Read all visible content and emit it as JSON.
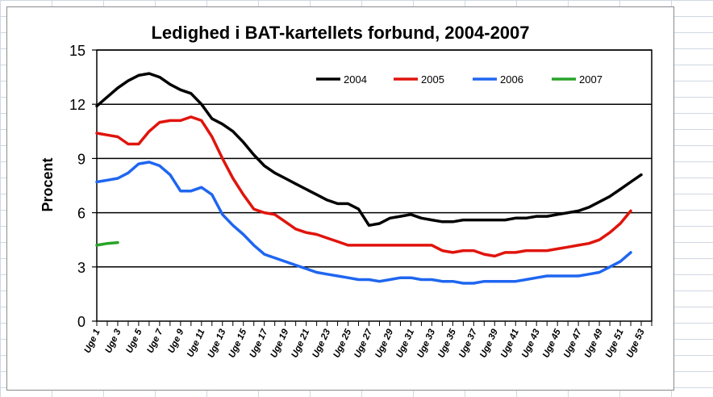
{
  "chart_data": {
    "type": "line",
    "title": "Ledighed i BAT-kartellets forbund, 2004-2007",
    "xlabel": "",
    "ylabel": "Procent",
    "ylim": [
      0,
      15
    ],
    "yticks": [
      0,
      3,
      6,
      9,
      12,
      15
    ],
    "xlim": [
      1,
      54
    ],
    "grid": "horizontal",
    "legend_position": "top-right",
    "x_tick_labels": [
      "Uge 1",
      "Uge 3",
      "Uge 5",
      "Uge 7",
      "Uge 9",
      "Uge 11",
      "Uge 13",
      "Uge 15",
      "Uge 17",
      "Uge 19",
      "Uge 21",
      "Uge 23",
      "Uge 25",
      "Uge 27",
      "Uge 29",
      "Uge 31",
      "Uge 33",
      "Uge 35",
      "Uge 37",
      "Uge 39",
      "Uge 41",
      "Uge 43",
      "Uge 45",
      "Uge 47",
      "Uge 49",
      "Uge 51",
      "Uge 53"
    ],
    "series": [
      {
        "name": "2004",
        "color": "#000000",
        "x": [
          1,
          2,
          3,
          4,
          5,
          6,
          7,
          8,
          9,
          10,
          11,
          12,
          13,
          14,
          15,
          16,
          17,
          18,
          19,
          20,
          21,
          22,
          23,
          24,
          25,
          26,
          27,
          28,
          29,
          30,
          31,
          32,
          33,
          34,
          35,
          36,
          37,
          38,
          39,
          40,
          41,
          42,
          43,
          44,
          45,
          46,
          47,
          48,
          49,
          50,
          51,
          52,
          53
        ],
        "values": [
          11.9,
          12.4,
          12.9,
          13.3,
          13.6,
          13.7,
          13.5,
          13.1,
          12.8,
          12.6,
          12.0,
          11.2,
          10.9,
          10.5,
          9.9,
          9.2,
          8.6,
          8.2,
          7.9,
          7.6,
          7.3,
          7.0,
          6.7,
          6.5,
          6.5,
          6.2,
          5.3,
          5.4,
          5.7,
          5.8,
          5.9,
          5.7,
          5.6,
          5.5,
          5.5,
          5.6,
          5.6,
          5.6,
          5.6,
          5.6,
          5.7,
          5.7,
          5.8,
          5.8,
          5.9,
          6.0,
          6.1,
          6.3,
          6.6,
          6.9,
          7.3,
          7.7,
          8.1
        ]
      },
      {
        "name": "2005",
        "color": "#e0140c",
        "x": [
          1,
          2,
          3,
          4,
          5,
          6,
          7,
          8,
          9,
          10,
          11,
          12,
          13,
          14,
          15,
          16,
          17,
          18,
          19,
          20,
          21,
          22,
          23,
          24,
          25,
          26,
          27,
          28,
          29,
          30,
          31,
          32,
          33,
          34,
          35,
          36,
          37,
          38,
          39,
          40,
          41,
          42,
          43,
          44,
          45,
          46,
          47,
          48,
          49,
          50,
          51,
          52
        ],
        "values": [
          10.4,
          10.3,
          10.2,
          9.8,
          9.8,
          10.5,
          11.0,
          11.1,
          11.1,
          11.3,
          11.1,
          10.2,
          9.0,
          7.9,
          7.0,
          6.2,
          6.0,
          5.9,
          5.5,
          5.1,
          4.9,
          4.8,
          4.6,
          4.4,
          4.2,
          4.2,
          4.2,
          4.2,
          4.2,
          4.2,
          4.2,
          4.2,
          4.2,
          3.9,
          3.8,
          3.9,
          3.9,
          3.7,
          3.6,
          3.8,
          3.8,
          3.9,
          3.9,
          3.9,
          4.0,
          4.1,
          4.2,
          4.3,
          4.5,
          4.9,
          5.4,
          6.1
        ]
      },
      {
        "name": "2006",
        "color": "#1f66f0",
        "x": [
          1,
          2,
          3,
          4,
          5,
          6,
          7,
          8,
          9,
          10,
          11,
          12,
          13,
          14,
          15,
          16,
          17,
          18,
          19,
          20,
          21,
          22,
          23,
          24,
          25,
          26,
          27,
          28,
          29,
          30,
          31,
          32,
          33,
          34,
          35,
          36,
          37,
          38,
          39,
          40,
          41,
          42,
          43,
          44,
          45,
          46,
          47,
          48,
          49,
          50,
          51,
          52
        ],
        "values": [
          7.7,
          7.8,
          7.9,
          8.2,
          8.7,
          8.8,
          8.6,
          8.1,
          7.2,
          7.2,
          7.4,
          7.0,
          5.9,
          5.3,
          4.8,
          4.2,
          3.7,
          3.5,
          3.3,
          3.1,
          2.9,
          2.7,
          2.6,
          2.5,
          2.4,
          2.3,
          2.3,
          2.2,
          2.3,
          2.4,
          2.4,
          2.3,
          2.3,
          2.2,
          2.2,
          2.1,
          2.1,
          2.2,
          2.2,
          2.2,
          2.2,
          2.3,
          2.4,
          2.5,
          2.5,
          2.5,
          2.5,
          2.6,
          2.7,
          3.0,
          3.3,
          3.8
        ]
      },
      {
        "name": "2007",
        "color": "#28a428",
        "x": [
          1,
          2,
          3
        ],
        "values": [
          4.2,
          4.3,
          4.35
        ]
      }
    ]
  }
}
